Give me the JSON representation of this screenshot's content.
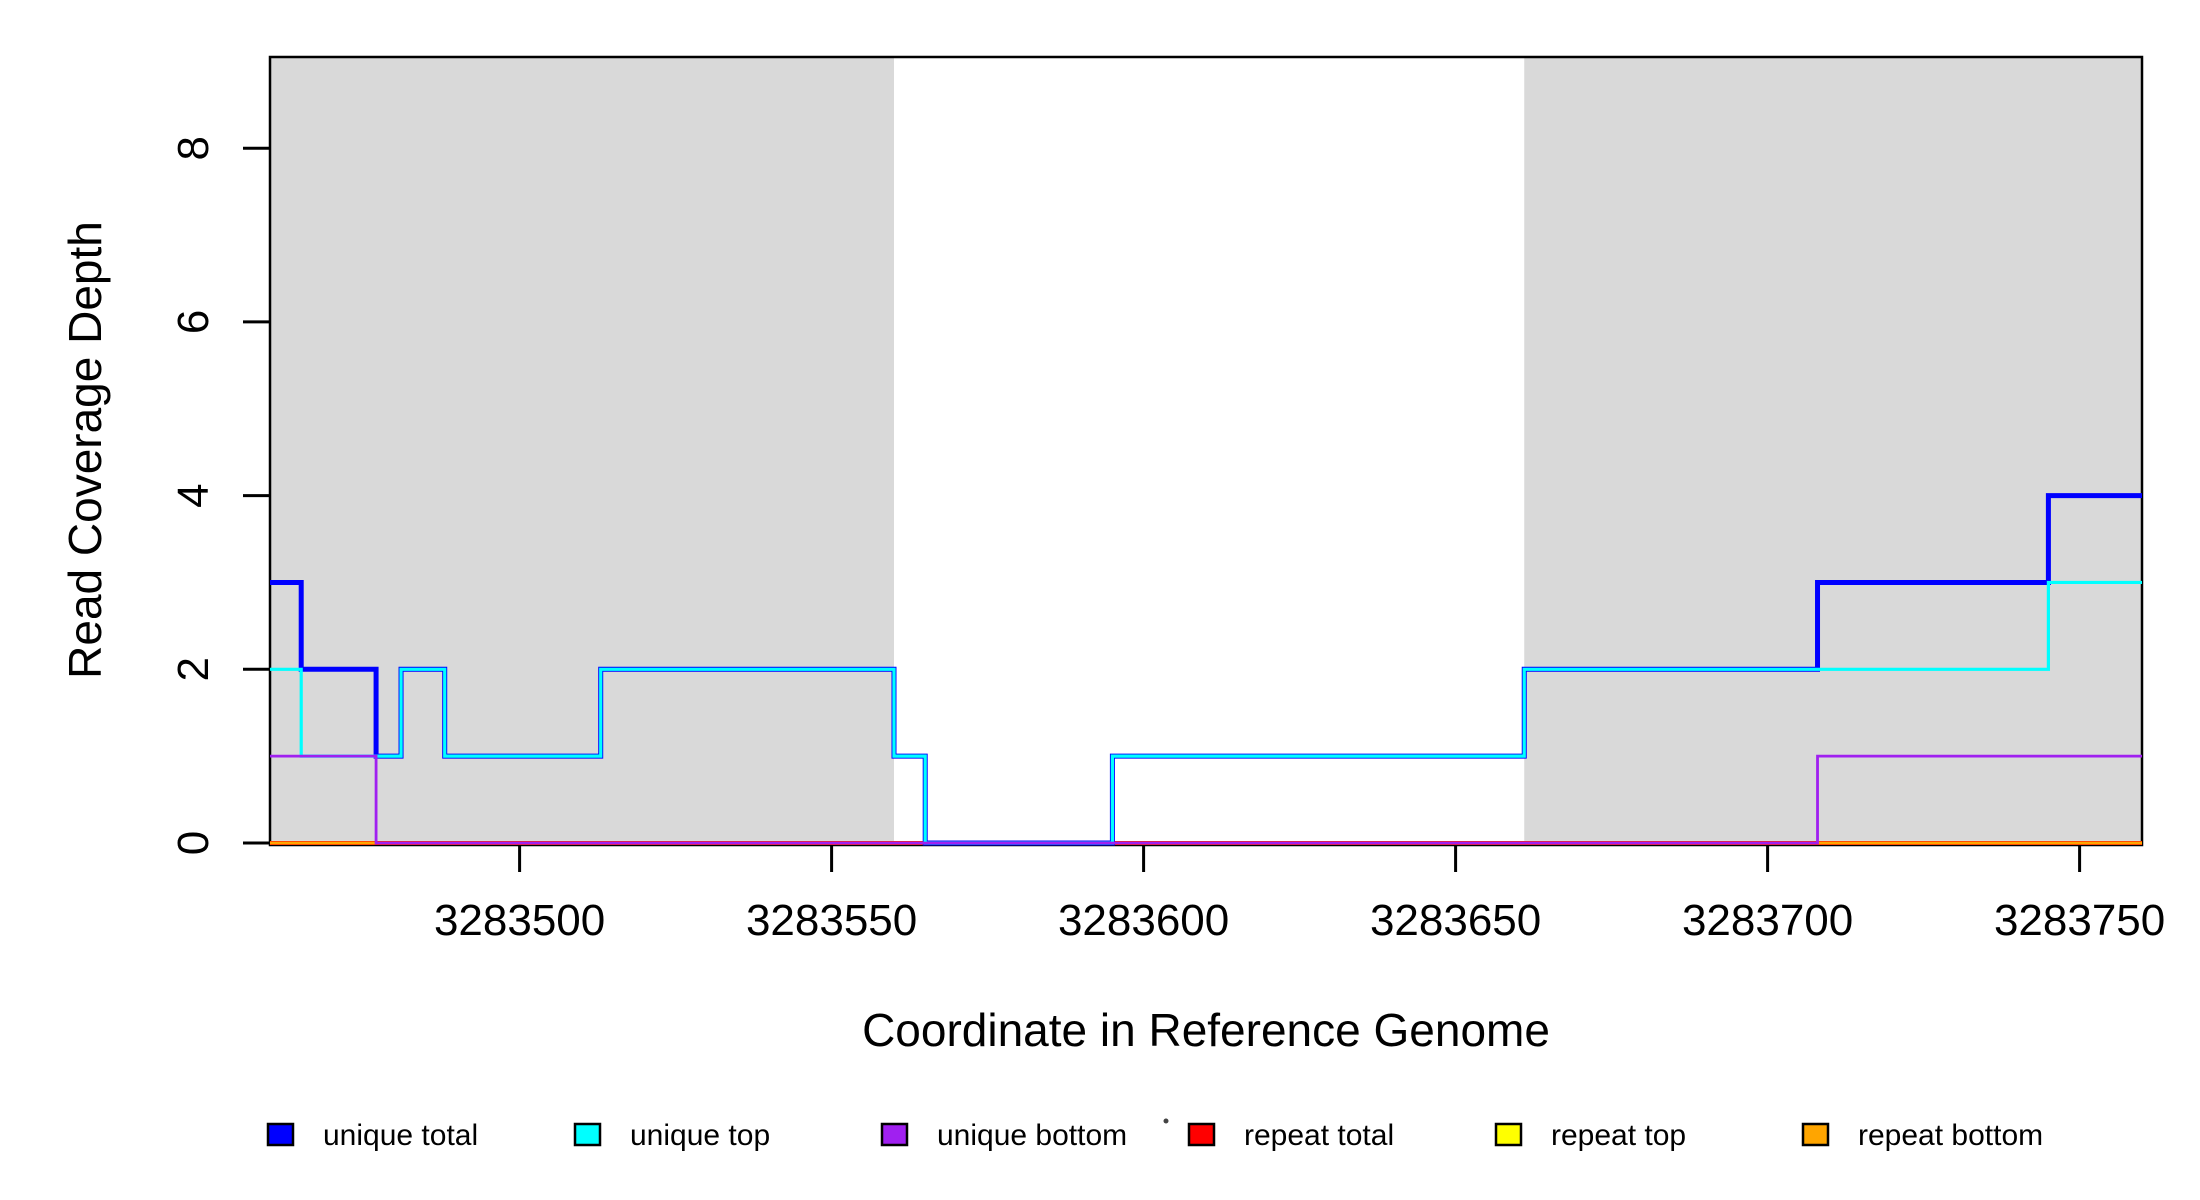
{
  "figure": {
    "background_color": "#FFFFFF",
    "plot_border_color": "#000000",
    "stray_mark": "·"
  },
  "chart_data": {
    "type": "step-line",
    "title": "",
    "xlabel": "Coordinate in Reference Genome",
    "ylabel": "Read Coverage Depth",
    "xlim": [
      3283460,
      3283760
    ],
    "ylim": [
      0,
      9.05
    ],
    "x_ticks": [
      3283500,
      3283550,
      3283600,
      3283650,
      3283700,
      3283750
    ],
    "y_ticks": [
      0,
      2,
      4,
      6,
      8
    ],
    "grid": false,
    "legend_position": "bottom",
    "shaded_regions": {
      "color": "#D9D9D9",
      "ranges": [
        [
          3283460,
          3283560
        ],
        [
          3283661,
          3283760
        ]
      ]
    },
    "series": [
      {
        "name": "unique total",
        "color": "#0000FF",
        "line_width": 5,
        "steps": [
          [
            3283460,
            3
          ],
          [
            3283465,
            2
          ],
          [
            3283477,
            1
          ],
          [
            3283481,
            2
          ],
          [
            3283488,
            1
          ],
          [
            3283513,
            2
          ],
          [
            3283560,
            1
          ],
          [
            3283565,
            0
          ],
          [
            3283595,
            1
          ],
          [
            3283661,
            2
          ],
          [
            3283708,
            3
          ],
          [
            3283745,
            4
          ]
        ]
      },
      {
        "name": "unique top",
        "color": "#00FFFF",
        "line_width": 3.2,
        "steps": [
          [
            3283460,
            2
          ],
          [
            3283465,
            1
          ],
          [
            3283481,
            2
          ],
          [
            3283488,
            1
          ],
          [
            3283513,
            2
          ],
          [
            3283560,
            1
          ],
          [
            3283565,
            0
          ],
          [
            3283595,
            1
          ],
          [
            3283661,
            2
          ],
          [
            3283745,
            3
          ]
        ]
      },
      {
        "name": "unique bottom",
        "color": "#A020F0",
        "line_width": 2.8,
        "steps": [
          [
            3283460,
            1
          ],
          [
            3283477,
            0
          ],
          [
            3283708,
            1
          ]
        ]
      },
      {
        "name": "repeat total",
        "color": "#FF0000",
        "line_width": 4,
        "steps": [
          [
            3283460,
            0
          ]
        ]
      },
      {
        "name": "repeat top",
        "color": "#FFFF00",
        "line_width": 2.6,
        "steps": [
          [
            3283460,
            0
          ]
        ]
      },
      {
        "name": "repeat bottom",
        "color": "#FFA500",
        "line_width": 2.8,
        "steps": [
          [
            3283460,
            0
          ]
        ]
      }
    ],
    "draw_order": [
      "repeat total",
      "repeat top",
      "repeat bottom",
      "unique total",
      "unique top",
      "unique bottom"
    ]
  }
}
